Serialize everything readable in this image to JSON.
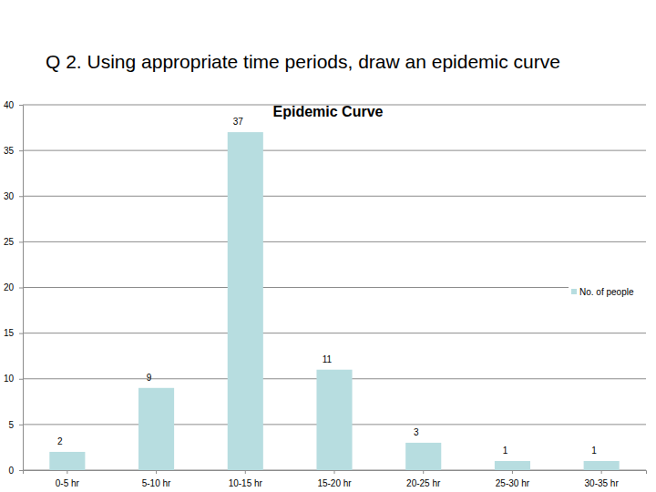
{
  "chart_data": {
    "type": "bar",
    "subtitle": "Q 2. Using appropriate time periods, draw an epidemic curve",
    "title": "Epidemic Curve",
    "categories": [
      "0-5 hr",
      "5-10 hr",
      "10-15 hr",
      "15-20 hr",
      "20-25 hr",
      "25-30 hr",
      "30-35 hr"
    ],
    "series": [
      {
        "name": "No. of people",
        "color": "#b7dde0",
        "values": [
          2,
          9,
          37,
          11,
          3,
          1,
          1
        ]
      }
    ],
    "ylim": [
      0,
      40
    ],
    "yticks": [
      0,
      5,
      10,
      15,
      20,
      25,
      30,
      35,
      40
    ],
    "grid": true,
    "legend": "right",
    "data_labels": true
  }
}
